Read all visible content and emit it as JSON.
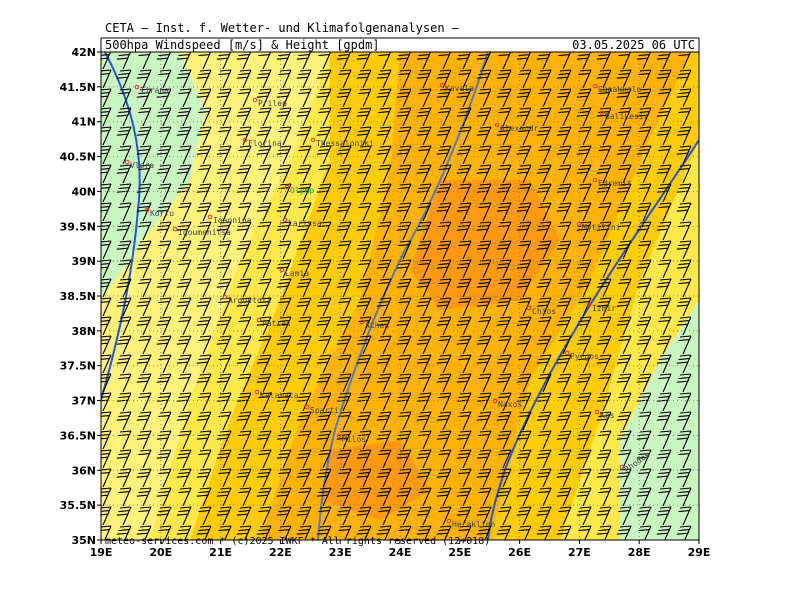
{
  "header": {
    "title": "CETA — Inst. f. Wetter- und Klimafolgenanalysen —",
    "subtitle": "500hpa Windspeed [m/s] & Height [gpdm]",
    "valid": "03.05.2025 06 UTC"
  },
  "axes": {
    "lat_labels": [
      "42N",
      "41.5N",
      "41N",
      "40.5N",
      "40N",
      "39.5N",
      "39N",
      "38.5N",
      "38N",
      "37.5N",
      "37N",
      "36.5N",
      "36N",
      "35.5N",
      "35N"
    ],
    "lon_labels": [
      "19E",
      "20E",
      "21E",
      "22E",
      "23E",
      "24E",
      "25E",
      "26E",
      "27E",
      "28E",
      "29E"
    ]
  },
  "cities": [
    "Tirana",
    "Prilep",
    "Florina",
    "Thessaloniki",
    "Kavala",
    "Alexandr",
    "Canakkale",
    "Balikesir",
    "Vlora",
    "Korfu",
    "Ioannina",
    "Igoumenitsa",
    "Olymp",
    "Larissa",
    "Edremit",
    "Mytilini",
    "Lamia",
    "Argostoli",
    "Patras",
    "Athen",
    "Chios",
    "Izmir",
    "Pyrgos",
    "Kalamata",
    "Sparti",
    "Milos",
    "Naxos",
    "Kos",
    "Rhodos",
    "Heraklion"
  ],
  "footer": "meteo-services.com * (c)2025 IWKF * All rights reserved (12+018)"
}
